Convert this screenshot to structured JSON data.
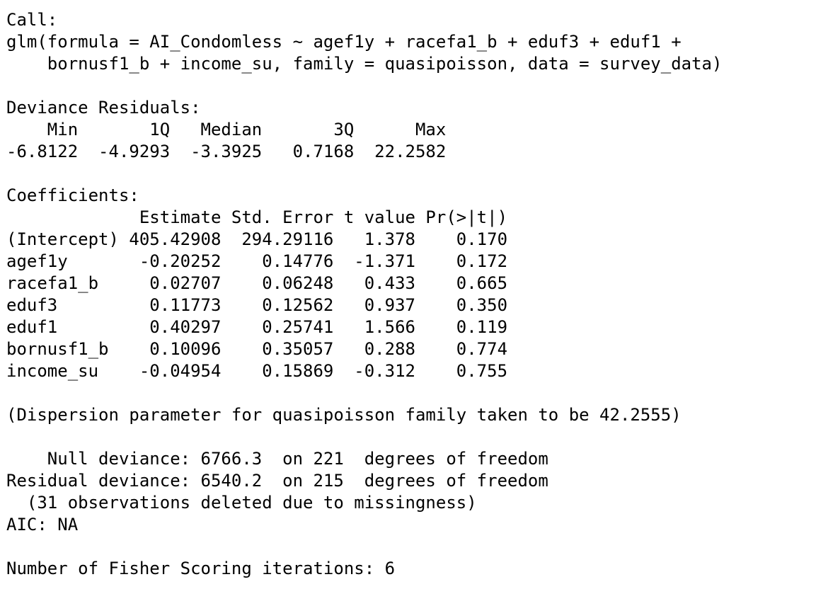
{
  "call": {
    "header": "Call:",
    "lines": [
      "glm(formula = AI_Condomless ~ agef1y + racefa1_b + eduf3 + eduf1 +",
      "    bornusf1_b + income_su, family = quasipoisson, data = survey_data)"
    ]
  },
  "deviance_residuals": {
    "header": "Deviance Residuals:",
    "labels_line": "    Min       1Q   Median       3Q      Max  ",
    "values_line": "-6.8122  -4.9293  -3.3925   0.7168  22.2582  "
  },
  "coefficients": {
    "header": "Coefficients:",
    "columns_line": "             Estimate Std. Error t value Pr(>|t|)",
    "rows": [
      "(Intercept) 405.42908  294.29116   1.378    0.170",
      "agef1y       -0.20252    0.14776  -1.371    0.172",
      "racefa1_b     0.02707    0.06248   0.433    0.665",
      "eduf3         0.11773    0.12562   0.937    0.350",
      "eduf1         0.40297    0.25741   1.566    0.119",
      "bornusf1_b    0.10096    0.35057   0.288    0.774",
      "income_su    -0.04954    0.15869  -0.312    0.755"
    ]
  },
  "dispersion": "(Dispersion parameter for quasipoisson family taken to be 42.2555)",
  "deviance": {
    "null_line": "    Null deviance: 6766.3  on 221  degrees of freedom",
    "residual_line": "Residual deviance: 6540.2  on 215  degrees of freedom",
    "missing_line": "  (31 observations deleted due to missingness)",
    "aic_line": "AIC: NA"
  },
  "fisher": "Number of Fisher Scoring iterations: 6"
}
